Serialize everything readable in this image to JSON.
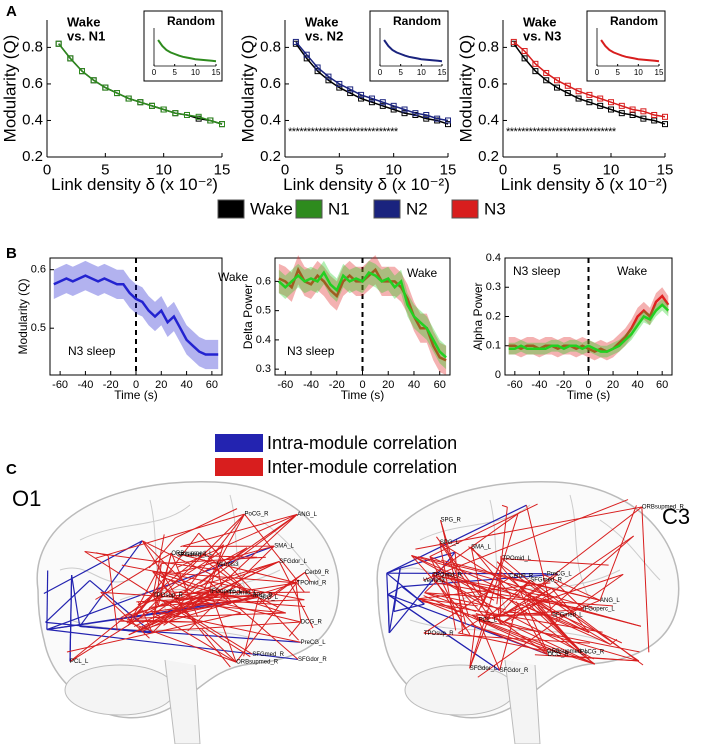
{
  "panel_labels": [
    "A",
    "B",
    "C"
  ],
  "chart_data": [
    {
      "type": "line",
      "title": [
        "Wake",
        "vs. N1"
      ],
      "xlabel": "Link density δ (x 10⁻²)",
      "ylabel": "Modularity (Q)",
      "x": [
        1,
        2,
        3,
        4,
        5,
        6,
        7,
        8,
        9,
        10,
        11,
        12,
        13,
        14,
        15
      ],
      "xlim": [
        0,
        15
      ],
      "xticks": [
        0,
        5,
        10,
        15
      ],
      "ylim": [
        0.2,
        0.95
      ],
      "yticks": [
        0.2,
        0.4,
        0.6,
        0.8
      ],
      "frame": false,
      "markers": true,
      "series": [
        {
          "name": "Wake",
          "color": "#000000",
          "values": [
            0.82,
            0.74,
            0.67,
            0.62,
            0.58,
            0.55,
            0.52,
            0.5,
            0.48,
            0.46,
            0.44,
            0.43,
            0.41,
            0.4,
            0.38
          ]
        },
        {
          "name": "N1",
          "color": "#2e8b1e",
          "values": [
            0.82,
            0.74,
            0.67,
            0.62,
            0.58,
            0.55,
            0.52,
            0.5,
            0.48,
            0.46,
            0.44,
            0.43,
            0.42,
            0.4,
            0.38
          ]
        }
      ],
      "inset": {
        "title": "Random",
        "x": [
          1,
          2,
          3,
          4,
          5,
          6,
          7,
          8,
          9,
          10,
          11,
          12,
          13,
          14,
          15
        ],
        "xlim": [
          0,
          15
        ],
        "xticks": [
          0,
          5,
          10,
          15
        ],
        "ylim": [
          0.1,
          0.9
        ],
        "series": [
          {
            "color": "#2e8b1e",
            "values": [
              0.75,
              0.6,
              0.5,
              0.44,
              0.4,
              0.36,
              0.33,
              0.31,
              0.29,
              0.27,
              0.26,
              0.25,
              0.24,
              0.23,
              0.22
            ]
          }
        ]
      }
    },
    {
      "type": "line",
      "title": [
        "Wake",
        "vs. N2"
      ],
      "xlabel": "Link density δ (x 10⁻²)",
      "ylabel": "Modularity (Q)",
      "x": [
        1,
        2,
        3,
        4,
        5,
        6,
        7,
        8,
        9,
        10,
        11,
        12,
        13,
        14,
        15
      ],
      "xlim": [
        0,
        15
      ],
      "xticks": [
        0,
        5,
        10,
        15
      ],
      "ylim": [
        0.2,
        0.95
      ],
      "yticks": [
        0.2,
        0.4,
        0.6,
        0.8
      ],
      "frame": false,
      "markers": true,
      "annotation": "*****************************",
      "series": [
        {
          "color": "#000000",
          "values": [
            0.82,
            0.74,
            0.67,
            0.62,
            0.58,
            0.55,
            0.52,
            0.5,
            0.48,
            0.46,
            0.44,
            0.43,
            0.41,
            0.4,
            0.38
          ]
        },
        {
          "name": "N2",
          "color": "#1a237e",
          "values": [
            0.83,
            0.76,
            0.69,
            0.64,
            0.6,
            0.57,
            0.54,
            0.52,
            0.5,
            0.48,
            0.46,
            0.44,
            0.43,
            0.41,
            0.4
          ]
        }
      ],
      "inset": {
        "title": "Random",
        "x": [
          1,
          2,
          3,
          4,
          5,
          6,
          7,
          8,
          9,
          10,
          11,
          12,
          13,
          14,
          15
        ],
        "xlim": [
          0,
          15
        ],
        "xticks": [
          0,
          5,
          10,
          15
        ],
        "ylim": [
          0.1,
          0.9
        ],
        "series": [
          {
            "color": "#1a237e",
            "values": [
              0.75,
              0.6,
              0.5,
              0.44,
              0.4,
              0.36,
              0.33,
              0.31,
              0.29,
              0.27,
              0.26,
              0.25,
              0.24,
              0.23,
              0.22
            ]
          }
        ]
      }
    },
    {
      "type": "line",
      "title": [
        "Wake",
        "vs. N3"
      ],
      "xlabel": "Link density δ (x 10⁻²)",
      "ylabel": "Modularity (Q)",
      "x": [
        1,
        2,
        3,
        4,
        5,
        6,
        7,
        8,
        9,
        10,
        11,
        12,
        13,
        14,
        15
      ],
      "xlim": [
        0,
        15
      ],
      "xticks": [
        0,
        5,
        10,
        15
      ],
      "ylim": [
        0.2,
        0.95
      ],
      "yticks": [
        0.2,
        0.4,
        0.6,
        0.8
      ],
      "frame": false,
      "markers": true,
      "annotation": "*****************************",
      "series": [
        {
          "color": "#000000",
          "values": [
            0.82,
            0.74,
            0.67,
            0.62,
            0.58,
            0.55,
            0.52,
            0.5,
            0.48,
            0.46,
            0.44,
            0.43,
            0.41,
            0.4,
            0.38
          ]
        },
        {
          "name": "N3",
          "color": "#d81e1e",
          "values": [
            0.83,
            0.78,
            0.71,
            0.66,
            0.62,
            0.59,
            0.56,
            0.54,
            0.52,
            0.5,
            0.48,
            0.46,
            0.45,
            0.43,
            0.42
          ]
        }
      ],
      "inset": {
        "title": "Random",
        "x": [
          1,
          2,
          3,
          4,
          5,
          6,
          7,
          8,
          9,
          10,
          11,
          12,
          13,
          14,
          15
        ],
        "xlim": [
          0,
          15
        ],
        "xticks": [
          0,
          5,
          10,
          15
        ],
        "ylim": [
          0.1,
          0.9
        ],
        "series": [
          {
            "color": "#d81e1e",
            "values": [
              0.75,
              0.6,
              0.5,
              0.44,
              0.4,
              0.36,
              0.33,
              0.31,
              0.29,
              0.27,
              0.26,
              0.25,
              0.24,
              0.23,
              0.22
            ]
          }
        ]
      }
    },
    {
      "type": "line",
      "xlabel": "Time (s)",
      "ylabel": "Modularity (Q)",
      "annotations": [
        "Wake",
        "N3 sleep"
      ],
      "x": [
        -65,
        -60,
        -55,
        -50,
        -45,
        -40,
        -35,
        -30,
        -25,
        -20,
        -15,
        -10,
        -5,
        0,
        5,
        10,
        15,
        20,
        25,
        30,
        35,
        40,
        45,
        50,
        55,
        60,
        65
      ],
      "xlim": [
        -68,
        68
      ],
      "xticks": [
        -60,
        -40,
        -20,
        0,
        20,
        40,
        60
      ],
      "ylim": [
        0.42,
        0.62
      ],
      "yticks": [
        0.5,
        0.6
      ],
      "frame": true,
      "vline": 0,
      "series": [
        {
          "color": "#2323d0",
          "error": 0.025,
          "values": [
            0.575,
            0.58,
            0.585,
            0.58,
            0.585,
            0.59,
            0.585,
            0.58,
            0.585,
            0.58,
            0.575,
            0.575,
            0.56,
            0.55,
            0.545,
            0.53,
            0.52,
            0.53,
            0.51,
            0.52,
            0.5,
            0.48,
            0.47,
            0.46,
            0.455,
            0.455,
            0.455
          ]
        }
      ]
    },
    {
      "type": "line",
      "xlabel": "Time (s)",
      "ylabel": "Delta Power",
      "annotations": [
        "Wake",
        "N3 sleep"
      ],
      "x": [
        -65,
        -60,
        -55,
        -50,
        -45,
        -40,
        -35,
        -30,
        -25,
        -20,
        -15,
        -10,
        -5,
        0,
        5,
        10,
        15,
        20,
        25,
        30,
        35,
        40,
        45,
        50,
        55,
        60,
        65
      ],
      "xlim": [
        -68,
        68
      ],
      "xticks": [
        -60,
        -40,
        -20,
        0,
        20,
        40,
        60
      ],
      "ylim": [
        0.28,
        0.68
      ],
      "yticks": [
        0.3,
        0.4,
        0.5,
        0.6
      ],
      "frame": true,
      "vline": 0,
      "series": [
        {
          "color": "#e02020",
          "error": 0.05,
          "values": [
            0.61,
            0.6,
            0.58,
            0.64,
            0.6,
            0.59,
            0.62,
            0.6,
            0.57,
            0.55,
            0.6,
            0.62,
            0.6,
            0.6,
            0.62,
            0.64,
            0.6,
            0.6,
            0.6,
            0.58,
            0.54,
            0.48,
            0.44,
            0.44,
            0.38,
            0.34,
            0.33
          ]
        },
        {
          "color": "#22d022",
          "error": 0.04,
          "values": [
            0.6,
            0.58,
            0.6,
            0.62,
            0.6,
            0.61,
            0.6,
            0.63,
            0.59,
            0.57,
            0.62,
            0.6,
            0.61,
            0.6,
            0.63,
            0.62,
            0.6,
            0.61,
            0.58,
            0.6,
            0.52,
            0.48,
            0.46,
            0.44,
            0.4,
            0.36,
            0.34
          ]
        }
      ]
    },
    {
      "type": "line",
      "xlabel": "Time (s)",
      "ylabel": "Alpha Power",
      "annotations": [
        "N3 sleep",
        "Wake"
      ],
      "x": [
        -65,
        -60,
        -55,
        -50,
        -45,
        -40,
        -35,
        -30,
        -25,
        -20,
        -15,
        -10,
        -5,
        0,
        5,
        10,
        15,
        20,
        25,
        30,
        35,
        40,
        45,
        50,
        55,
        60,
        65
      ],
      "xlim": [
        -68,
        68
      ],
      "xticks": [
        -60,
        -40,
        -20,
        0,
        20,
        40,
        60
      ],
      "ylim": [
        0,
        0.4
      ],
      "yticks": [
        0,
        0.1,
        0.2,
        0.3,
        0.4
      ],
      "frame": true,
      "vline": 0,
      "series": [
        {
          "color": "#e02020",
          "error": 0.03,
          "values": [
            0.1,
            0.1,
            0.09,
            0.1,
            0.1,
            0.09,
            0.1,
            0.1,
            0.09,
            0.1,
            0.1,
            0.09,
            0.1,
            0.09,
            0.08,
            0.09,
            0.08,
            0.09,
            0.11,
            0.13,
            0.16,
            0.2,
            0.22,
            0.2,
            0.25,
            0.27,
            0.24
          ]
        },
        {
          "color": "#22d022",
          "error": 0.02,
          "values": [
            0.09,
            0.09,
            0.1,
            0.09,
            0.09,
            0.09,
            0.09,
            0.1,
            0.1,
            0.09,
            0.1,
            0.1,
            0.09,
            0.1,
            0.09,
            0.08,
            0.08,
            0.09,
            0.1,
            0.12,
            0.14,
            0.17,
            0.2,
            0.19,
            0.22,
            0.24,
            0.22
          ]
        }
      ]
    }
  ],
  "module_legend": [
    {
      "name": "Intra-module correlation",
      "color": "#2323b0"
    },
    {
      "name": "Inter-module correlation",
      "color": "#d81e1e"
    }
  ],
  "brain": {
    "electrodes": [
      "O1",
      "C3"
    ],
    "nodes": [
      "PCL_L",
      "SPG_R",
      "SPG_L",
      "SMA_L",
      "PoCG_R",
      "PreCG_L",
      "DCG_R",
      "SFGdor_R",
      "SFGdor_L",
      "SFGmed_L",
      "SFGmed_R",
      "IFGoperc_L",
      "ANG_L",
      "ORBsupmed_R",
      "ORBsupmed_L",
      "TPOsup_R",
      "TPOmid_R",
      "TPOmid_L",
      "Cerb9_R",
      "Vermis3"
    ]
  }
}
